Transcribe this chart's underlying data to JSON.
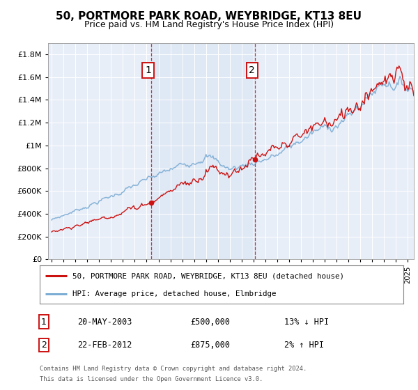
{
  "title": "50, PORTMORE PARK ROAD, WEYBRIDGE, KT13 8EU",
  "subtitle": "Price paid vs. HM Land Registry's House Price Index (HPI)",
  "legend_line1": "50, PORTMORE PARK ROAD, WEYBRIDGE, KT13 8EU (detached house)",
  "legend_line2": "HPI: Average price, detached house, Elmbridge",
  "sale1_label": "1",
  "sale1_date": "20-MAY-2003",
  "sale1_price": "£500,000",
  "sale1_hpi": "13% ↓ HPI",
  "sale2_label": "2",
  "sale2_date": "22-FEB-2012",
  "sale2_price": "£875,000",
  "sale2_hpi": "2% ↑ HPI",
  "footnote1": "Contains HM Land Registry data © Crown copyright and database right 2024.",
  "footnote2": "This data is licensed under the Open Government Licence v3.0.",
  "ylim": [
    0,
    1900000
  ],
  "yticks": [
    0,
    200000,
    400000,
    600000,
    800000,
    1000000,
    1200000,
    1400000,
    1600000,
    1800000
  ],
  "ytick_labels": [
    "£0",
    "£200K",
    "£400K",
    "£600K",
    "£800K",
    "£1M",
    "£1.2M",
    "£1.4M",
    "£1.6M",
    "£1.8M"
  ],
  "xlim_start": 1994.7,
  "xlim_end": 2025.5,
  "hpi_color": "#7dadd4",
  "price_color": "#cc1111",
  "sale1_x": 2003.38,
  "sale1_y": 500000,
  "sale2_x": 2012.13,
  "sale2_y": 875000,
  "background_color": "#ffffff",
  "plot_bg_color": "#e8eef8"
}
